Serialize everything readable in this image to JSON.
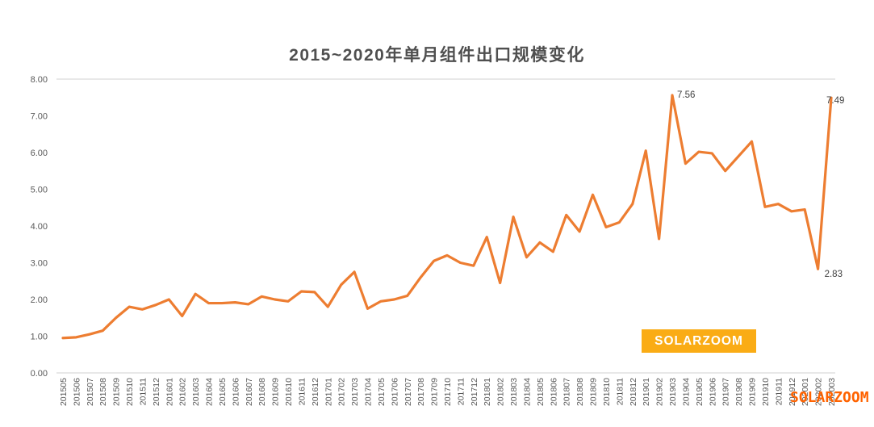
{
  "title": "2015~2020年单月组件出口规模变化",
  "badge": {
    "label": "SOLARZOOM"
  },
  "corner_watermark": "SOLARZOOM",
  "colors": {
    "line": "#ED7D31",
    "badge_bg": "#FAAC15",
    "badge_text": "#FFFFFF",
    "corner_watermark": "#FF6300",
    "axis_line": "#D2D2D2",
    "tick_label": "#595959",
    "title_text": "#4F4F4F",
    "point_label": "#3F3F3F"
  },
  "chart_data": {
    "type": "line",
    "title": "2015~2020年单月组件出口规模变化",
    "grid": "top-border-only",
    "legend": "none",
    "ylim": [
      0,
      8
    ],
    "ytick_labels": [
      "0.00",
      "1.00",
      "2.00",
      "3.00",
      "4.00",
      "5.00",
      "6.00",
      "7.00",
      "8.00"
    ],
    "categories": [
      "201505",
      "201506",
      "201507",
      "201508",
      "201509",
      "201510",
      "201511",
      "201512",
      "201601",
      "201602",
      "201603",
      "201604",
      "201605",
      "201606",
      "201607",
      "201608",
      "201609",
      "201610",
      "201611",
      "201612",
      "201701",
      "201702",
      "201703",
      "201704",
      "201705",
      "201706",
      "201707",
      "201708",
      "201709",
      "201710",
      "201711",
      "201712",
      "201801",
      "201802",
      "201803",
      "201804",
      "201805",
      "201806",
      "201807",
      "201808",
      "201809",
      "201810",
      "201811",
      "201812",
      "201901",
      "201902",
      "201903",
      "201904",
      "201905",
      "201906",
      "201907",
      "201908",
      "201909",
      "201910",
      "201911",
      "201912",
      "202001",
      "202002",
      "202003"
    ],
    "values": [
      0.95,
      0.97,
      1.05,
      1.15,
      1.5,
      1.8,
      1.73,
      1.85,
      2.0,
      1.55,
      2.15,
      1.9,
      1.9,
      1.92,
      1.87,
      2.08,
      2.0,
      1.95,
      2.22,
      2.2,
      1.8,
      2.4,
      2.75,
      1.75,
      1.95,
      2.0,
      2.1,
      2.6,
      3.05,
      3.2,
      3.0,
      2.92,
      3.7,
      2.45,
      4.25,
      3.15,
      3.55,
      3.3,
      4.3,
      3.85,
      4.85,
      3.97,
      4.1,
      4.6,
      6.05,
      3.65,
      7.56,
      5.7,
      6.02,
      5.98,
      5.5,
      5.9,
      6.3,
      4.52,
      4.6,
      4.4,
      4.45,
      2.83,
      7.49
    ],
    "point_labels": [
      {
        "category": "201903",
        "text": "7.56"
      },
      {
        "category": "202002",
        "text": "2.83"
      },
      {
        "category": "202003",
        "text": "7.49"
      }
    ]
  }
}
